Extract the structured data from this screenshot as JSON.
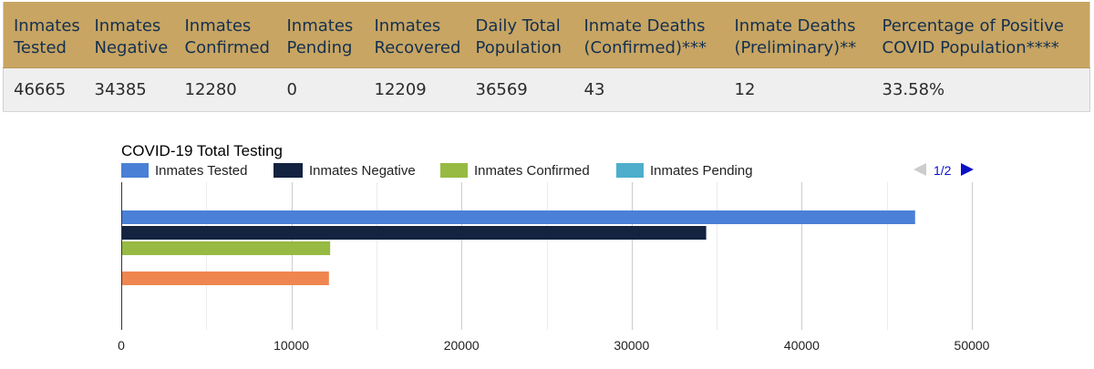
{
  "stats_table": {
    "headers": [
      [
        "Inmates",
        "Tested"
      ],
      [
        "Inmates",
        "Negative"
      ],
      [
        "Inmates",
        "Confirmed"
      ],
      [
        "Inmates",
        "Pending"
      ],
      [
        "Inmates",
        "Recovered"
      ],
      [
        "Daily Total",
        "Population"
      ],
      [
        "Inmate Deaths",
        "(Confirmed)***"
      ],
      [
        "Inmate Deaths",
        "(Preliminary)**"
      ],
      [
        "Percentage of Positive",
        "COVID Population****"
      ]
    ],
    "values": [
      "46665",
      "34385",
      "12280",
      "0",
      "12209",
      "36569",
      "43",
      "12",
      "33.58%"
    ]
  },
  "legend_pager": {
    "text": "1/2",
    "prev_icon": "triangle-left-icon",
    "next_icon": "triangle-right-icon"
  },
  "chart_data": {
    "type": "bar",
    "orientation": "horizontal",
    "title": "COVID-19 Total Testing",
    "xlabel": "",
    "ylabel": "",
    "xlim": [
      0,
      50000
    ],
    "x_ticks": [
      0,
      10000,
      20000,
      30000,
      40000,
      50000
    ],
    "minor_gridlines": true,
    "grid": true,
    "legend_position": "top",
    "series": [
      {
        "name": "Inmates Tested",
        "value": 46665,
        "color": "#4a80d6"
      },
      {
        "name": "Inmates Negative",
        "value": 34385,
        "color": "#132340"
      },
      {
        "name": "Inmates Confirmed",
        "value": 12280,
        "color": "#97ba42"
      },
      {
        "name": "Inmates Pending",
        "value": 0,
        "color": "#4eaecb"
      },
      {
        "name": "",
        "value": 12209,
        "color": "#ef8650"
      }
    ]
  }
}
